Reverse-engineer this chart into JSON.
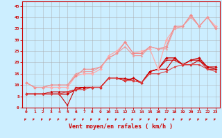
{
  "xlabel": "Vent moyen/en rafales ( km/h )",
  "background_color": "#cceeff",
  "grid_color": "#aaaaaa",
  "xlim": [
    -0.5,
    23.5
  ],
  "ylim": [
    0,
    47
  ],
  "yticks": [
    0,
    5,
    10,
    15,
    20,
    25,
    30,
    35,
    40,
    45
  ],
  "xticks": [
    0,
    1,
    2,
    3,
    4,
    5,
    6,
    7,
    8,
    9,
    10,
    11,
    12,
    13,
    14,
    15,
    16,
    17,
    18,
    19,
    20,
    21,
    22,
    23
  ],
  "series": [
    {
      "x": [
        0,
        1,
        2,
        3,
        4,
        5,
        6,
        7,
        8,
        9,
        10,
        11,
        12,
        13,
        14,
        15,
        16,
        17,
        18,
        19,
        20,
        21,
        22,
        23
      ],
      "y": [
        6,
        6,
        6,
        6,
        6,
        6,
        8,
        9,
        9,
        9,
        13,
        13,
        12,
        13,
        11,
        16,
        17,
        22,
        22,
        19,
        21,
        22,
        18,
        18
      ],
      "color": "#cc0000",
      "lw": 0.9,
      "marker": "D",
      "ms": 1.8
    },
    {
      "x": [
        0,
        1,
        2,
        3,
        4,
        5,
        6,
        7,
        8,
        9,
        10,
        11,
        12,
        13,
        14,
        15,
        16,
        17,
        18,
        19,
        20,
        21,
        22,
        23
      ],
      "y": [
        6,
        6,
        6,
        6,
        6,
        1,
        9,
        9,
        9,
        9,
        13,
        13,
        12,
        13,
        11,
        16,
        17,
        21,
        21,
        19,
        21,
        21,
        17,
        17
      ],
      "color": "#cc0000",
      "lw": 0.8,
      "marker": "+",
      "ms": 2.5
    },
    {
      "x": [
        0,
        1,
        2,
        3,
        4,
        5,
        6,
        7,
        8,
        9,
        10,
        11,
        12,
        13,
        14,
        15,
        16,
        17,
        18,
        19,
        20,
        21,
        22,
        23
      ],
      "y": [
        6,
        6,
        6,
        7,
        7,
        7,
        8,
        9,
        9,
        9,
        13,
        13,
        13,
        12,
        11,
        16,
        17,
        17,
        22,
        19,
        19,
        21,
        18,
        17
      ],
      "color": "#cc0000",
      "lw": 0.8,
      "marker": "^",
      "ms": 2.0
    },
    {
      "x": [
        0,
        1,
        2,
        3,
        4,
        5,
        6,
        7,
        8,
        9,
        10,
        11,
        12,
        13,
        14,
        15,
        16,
        17,
        18,
        19,
        20,
        21,
        22,
        23
      ],
      "y": [
        6,
        6,
        6,
        6,
        6,
        7,
        8,
        8,
        9,
        9,
        13,
        13,
        12,
        12,
        11,
        15,
        15,
        16,
        18,
        19,
        19,
        19,
        17,
        16
      ],
      "color": "#dd4444",
      "lw": 0.8,
      "marker": "s",
      "ms": 1.5
    },
    {
      "x": [
        0,
        1,
        2,
        3,
        4,
        5,
        6,
        7,
        8,
        9,
        10,
        11,
        12,
        13,
        14,
        15,
        16,
        17,
        18,
        19,
        20,
        21,
        22,
        23
      ],
      "y": [
        11,
        9,
        9,
        9,
        9,
        9,
        14,
        15,
        15,
        17,
        23,
        25,
        29,
        24,
        25,
        26,
        17,
        30,
        35,
        36,
        41,
        36,
        40,
        36
      ],
      "color": "#ffaaaa",
      "lw": 0.9,
      "marker": "D",
      "ms": 2.0
    },
    {
      "x": [
        0,
        1,
        2,
        3,
        4,
        5,
        6,
        7,
        8,
        9,
        10,
        11,
        12,
        13,
        14,
        15,
        16,
        17,
        18,
        19,
        20,
        21,
        22,
        23
      ],
      "y": [
        11,
        9,
        9,
        10,
        10,
        10,
        14,
        17,
        17,
        18,
        22,
        24,
        29,
        24,
        24,
        27,
        26,
        27,
        36,
        36,
        41,
        36,
        40,
        35
      ],
      "color": "#ee8888",
      "lw": 0.8,
      "marker": "D",
      "ms": 1.8
    },
    {
      "x": [
        0,
        1,
        2,
        3,
        4,
        5,
        6,
        7,
        8,
        9,
        10,
        11,
        12,
        13,
        14,
        15,
        16,
        17,
        18,
        19,
        20,
        21,
        22,
        23
      ],
      "y": [
        11,
        9,
        9,
        10,
        10,
        10,
        15,
        16,
        16,
        18,
        22,
        24,
        27,
        23,
        23,
        27,
        26,
        26,
        35,
        36,
        40,
        36,
        40,
        35
      ],
      "color": "#ee9999",
      "lw": 0.8,
      "marker": "^",
      "ms": 1.8
    }
  ],
  "arrow_color": "#cc0000",
  "xlabel_color": "#cc0000",
  "tick_color": "#cc0000",
  "axis_color": "#cc0000"
}
